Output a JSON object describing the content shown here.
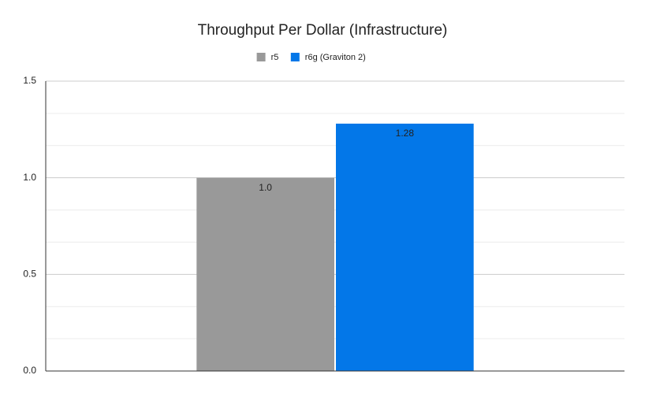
{
  "chart_data": {
    "type": "bar",
    "title": "Throughput Per Dollar (Infrastructure)",
    "categories": [
      null
    ],
    "series": [
      {
        "name": "r5",
        "color": "#999999",
        "values": [
          1
        ],
        "value_labels": [
          "1.0"
        ]
      },
      {
        "name": "r6g (Graviton 2)",
        "color": "#0377e8",
        "values": [
          1.28
        ]
      }
    ],
    "ylim": [
      0,
      1.5
    ],
    "yticks": [
      {
        "value": 0,
        "label": "0.0"
      },
      {
        "value": 0.5,
        "label": "0.5"
      },
      {
        "value": 1,
        "label": "1.0"
      },
      {
        "value": 1.5,
        "label": "1.5"
      }
    ],
    "minor_yticks": [
      0.167,
      0.333,
      0.667,
      0.833,
      1.167,
      1.333
    ],
    "grid": true,
    "legend": "top"
  }
}
